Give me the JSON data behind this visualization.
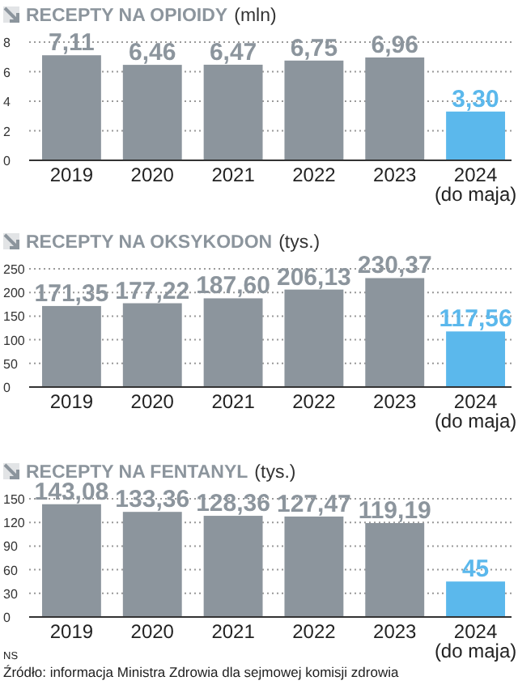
{
  "chart_data": [
    {
      "type": "bar",
      "title": "RECEPTY NA OPIOIDY",
      "subtitle": "(mln)",
      "categories": [
        "2019",
        "2020",
        "2021",
        "2022",
        "2023",
        "2024 (do maja)"
      ],
      "values": [
        7.11,
        6.46,
        6.47,
        6.75,
        6.96,
        3.3
      ],
      "colors": [
        "#8c959d",
        "#8c959d",
        "#8c959d",
        "#8c959d",
        "#8c959d",
        "#5bb8ec"
      ],
      "value_labels": [
        "7,11",
        "6,46",
        "6,47",
        "6,75",
        "6,96",
        "3,30"
      ],
      "ylim": [
        0,
        8
      ],
      "yticks": [
        0,
        2,
        4,
        6,
        8
      ],
      "grid": "y"
    },
    {
      "type": "bar",
      "title": "RECEPTY NA OKSYKODON",
      "subtitle": "(tys.)",
      "categories": [
        "2019",
        "2020",
        "2021",
        "2022",
        "2023",
        "2024 (do maja)"
      ],
      "values": [
        171.35,
        177.22,
        187.6,
        206.13,
        230.37,
        117.56
      ],
      "colors": [
        "#8c959d",
        "#8c959d",
        "#8c959d",
        "#8c959d",
        "#8c959d",
        "#5bb8ec"
      ],
      "value_labels": [
        "171,35",
        "177,22",
        "187,60",
        "206,13",
        "230,37",
        "117,56"
      ],
      "ylim": [
        0,
        250
      ],
      "yticks": [
        0,
        50,
        100,
        150,
        200,
        250
      ],
      "grid": "y"
    },
    {
      "type": "bar",
      "title": "RECEPTY NA FENTANYL",
      "subtitle": "(tys.)",
      "categories": [
        "2019",
        "2020",
        "2021",
        "2022",
        "2023",
        "2024 (do maja)"
      ],
      "values": [
        143.08,
        133.36,
        128.36,
        127.47,
        119.19,
        45
      ],
      "colors": [
        "#8c959d",
        "#8c959d",
        "#8c959d",
        "#8c959d",
        "#8c959d",
        "#5bb8ec"
      ],
      "value_labels": [
        "143,08",
        "133,36",
        "128,36",
        "127,47",
        "119,19",
        "45"
      ],
      "ylim": [
        0,
        150
      ],
      "yticks": [
        0,
        30,
        60,
        90,
        120,
        150
      ],
      "grid": "y",
      "annotations": [
        "NS",
        "Źródło: informacja Ministra Zdrowia dla sejmowej komisji zdrowia"
      ]
    }
  ]
}
